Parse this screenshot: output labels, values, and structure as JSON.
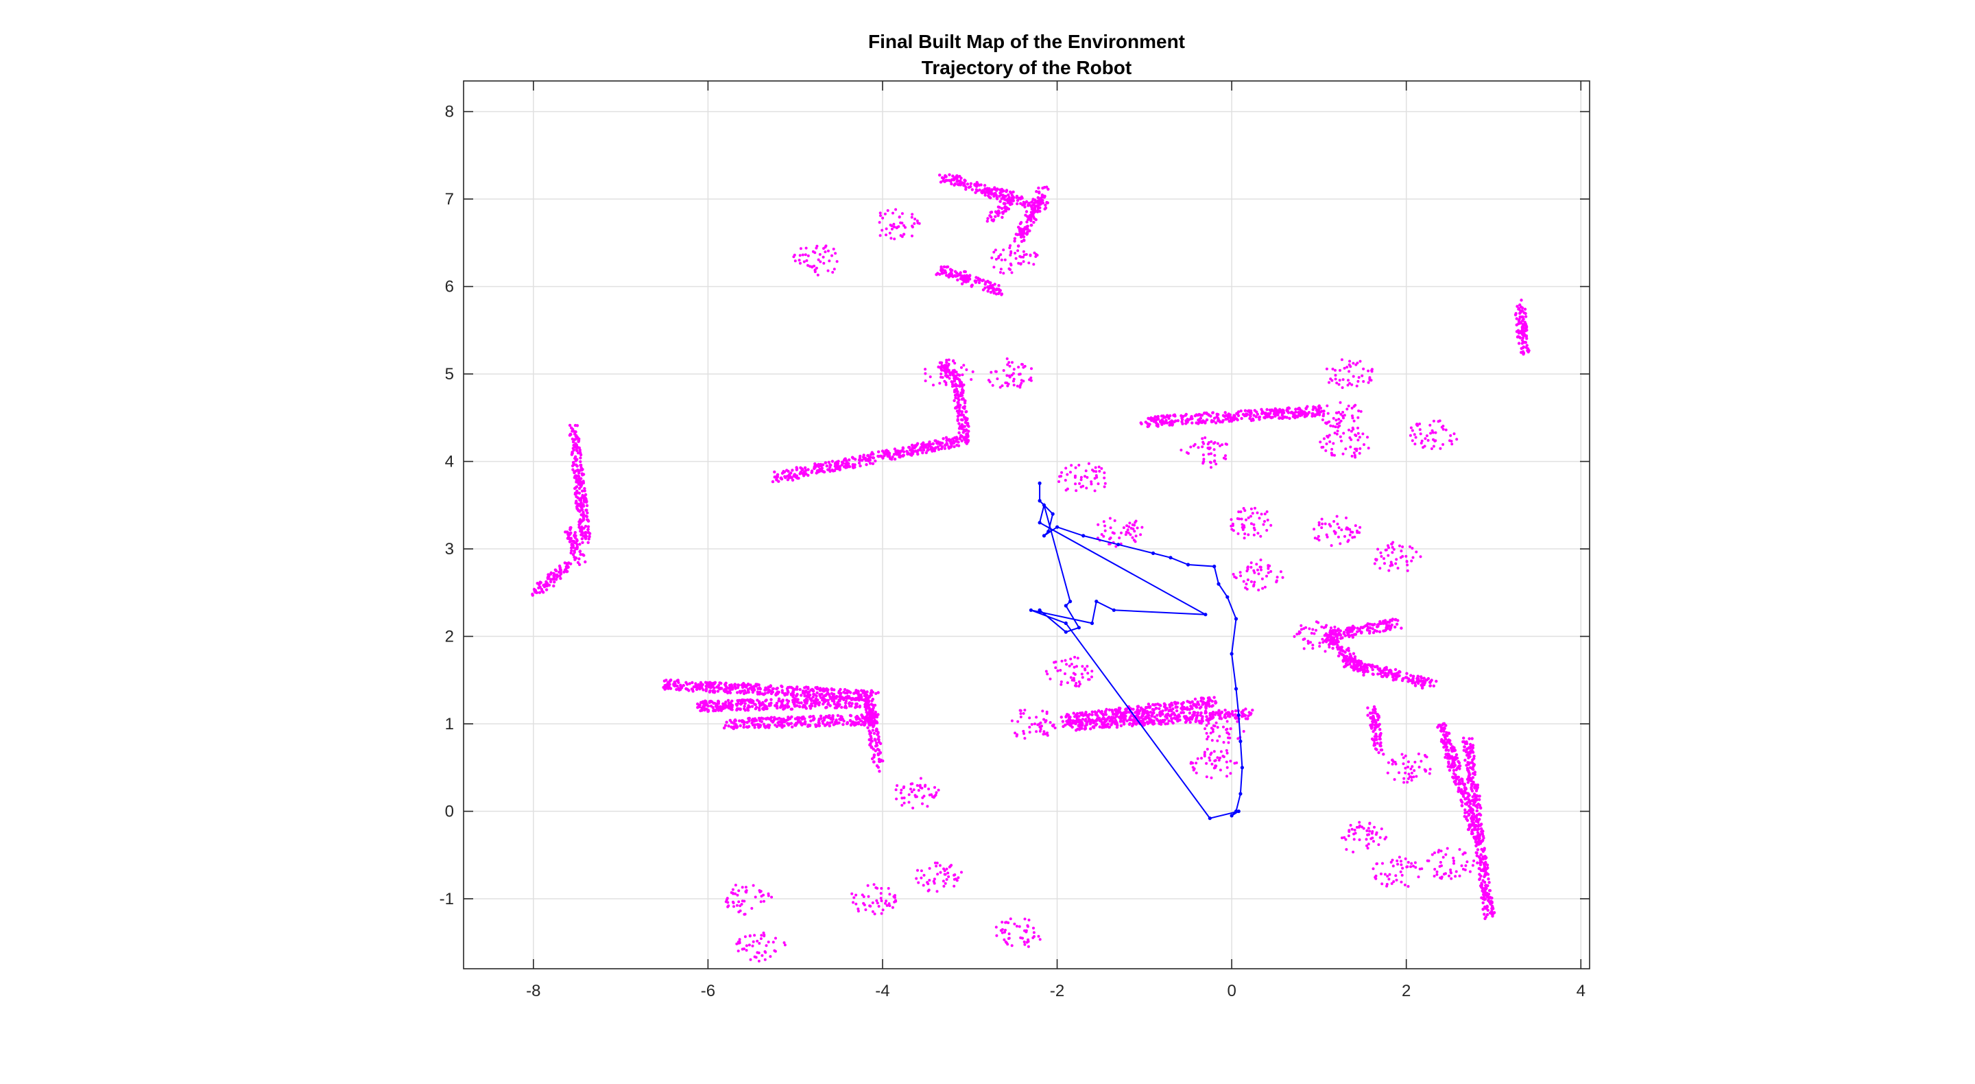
{
  "colors": {
    "map_points": "#ff00ff",
    "trajectory": "#0000ff",
    "grid": "#e0e0e0",
    "axes": "#262626",
    "background": "#ffffff"
  },
  "chart_data": {
    "type": "scatter",
    "title": "Final Built Map of the Environment",
    "subtitle": "Trajectory of the Robot",
    "xlabel": "",
    "ylabel": "",
    "xlim": [
      -8.8,
      4.1
    ],
    "ylim": [
      -1.8,
      8.35
    ],
    "xticks": [
      -8,
      -6,
      -4,
      -2,
      0,
      2,
      4
    ],
    "yticks": [
      -1,
      0,
      1,
      2,
      3,
      4,
      5,
      6,
      7,
      8
    ],
    "xtick_labels": [
      "-8",
      "-6",
      "-4",
      "-2",
      "0",
      "2",
      "4"
    ],
    "ytick_labels": [
      "-1",
      "0",
      "1",
      "2",
      "3",
      "4",
      "5",
      "6",
      "7",
      "8"
    ],
    "grid": true,
    "legend": "none",
    "series": [
      {
        "kind": "map_points",
        "marker": "dot",
        "segments": [
          [
            [
              -5.2,
              3.82
            ],
            [
              -3.05,
              4.25
            ]
          ],
          [
            [
              -3.05,
              4.25
            ],
            [
              -3.15,
              4.95
            ]
          ],
          [
            [
              -3.15,
              4.95
            ],
            [
              -3.35,
              5.1
            ]
          ],
          [
            [
              -1.0,
              4.45
            ],
            [
              1.05,
              4.58
            ]
          ],
          [
            [
              -7.55,
              4.4
            ],
            [
              -7.4,
              3.1
            ]
          ],
          [
            [
              -7.6,
              3.2
            ],
            [
              -7.45,
              2.85
            ]
          ],
          [
            [
              -8.0,
              2.5
            ],
            [
              -7.6,
              2.8
            ]
          ],
          [
            [
              -6.5,
              1.45
            ],
            [
              -4.1,
              1.32
            ]
          ],
          [
            [
              -6.1,
              1.2
            ],
            [
              -4.2,
              1.25
            ]
          ],
          [
            [
              -5.8,
              1.0
            ],
            [
              -4.05,
              1.05
            ]
          ],
          [
            [
              -4.15,
              1.3
            ],
            [
              -4.05,
              0.5
            ]
          ],
          [
            [
              -1.9,
              0.98
            ],
            [
              0.2,
              1.12
            ]
          ],
          [
            [
              -1.9,
              1.05
            ],
            [
              -0.2,
              1.25
            ]
          ],
          [
            [
              1.1,
              2.0
            ],
            [
              1.9,
              2.15
            ]
          ],
          [
            [
              1.1,
              2.0
            ],
            [
              1.5,
              1.6
            ]
          ],
          [
            [
              1.3,
              1.7
            ],
            [
              2.3,
              1.45
            ]
          ],
          [
            [
              1.6,
              1.2
            ],
            [
              1.7,
              0.7
            ]
          ],
          [
            [
              2.4,
              1.0
            ],
            [
              2.8,
              -0.3
            ]
          ],
          [
            [
              2.7,
              0.8
            ],
            [
              2.95,
              -1.2
            ]
          ],
          [
            [
              3.3,
              5.8
            ],
            [
              3.35,
              5.25
            ]
          ],
          [
            [
              -3.3,
              7.25
            ],
            [
              -2.15,
              6.9
            ]
          ],
          [
            [
              -2.15,
              7.1
            ],
            [
              -2.45,
              6.5
            ]
          ],
          [
            [
              -2.55,
              7.0
            ],
            [
              -2.75,
              6.75
            ]
          ],
          [
            [
              -3.35,
              6.2
            ],
            [
              -2.65,
              5.95
            ]
          ]
        ],
        "clusters": [
          [
            -3.25,
            5.0
          ],
          [
            -2.55,
            5.0
          ],
          [
            -4.75,
            6.3
          ],
          [
            -3.85,
            6.7
          ],
          [
            -2.5,
            6.3
          ],
          [
            -1.85,
            1.6
          ],
          [
            -2.3,
            1.0
          ],
          [
            -0.1,
            0.95
          ],
          [
            -0.2,
            0.55
          ],
          [
            -3.6,
            0.2
          ],
          [
            -3.35,
            -0.75
          ],
          [
            -4.1,
            -1.0
          ],
          [
            -2.45,
            -1.4
          ],
          [
            -5.4,
            -1.55
          ],
          [
            -5.55,
            -1.0
          ],
          [
            1.35,
            5.0
          ],
          [
            1.25,
            4.5
          ],
          [
            1.3,
            4.2
          ],
          [
            1.2,
            3.2
          ],
          [
            1.9,
            2.9
          ],
          [
            2.3,
            4.3
          ],
          [
            1.0,
            2.0
          ],
          [
            0.3,
            2.7
          ],
          [
            2.05,
            0.5
          ],
          [
            2.5,
            -0.6
          ],
          [
            1.5,
            -0.3
          ],
          [
            1.9,
            -0.7
          ],
          [
            0.2,
            3.3
          ],
          [
            -1.3,
            3.2
          ],
          [
            -1.7,
            3.8
          ],
          [
            -0.3,
            4.1
          ]
        ]
      },
      {
        "kind": "trajectory",
        "line": true,
        "x": [
          -2.2,
          -2.2,
          -2.05,
          -2.1,
          -2.15,
          -2.0,
          -1.7,
          -1.3,
          -0.9,
          -0.7,
          -0.5,
          -0.2,
          -0.15,
          -0.05,
          0.05,
          0.0,
          0.05,
          0.08,
          0.1,
          0.12,
          0.1,
          0.05,
          0.0,
          0.08,
          -0.25,
          -1.9,
          -2.3,
          -1.6,
          -1.55,
          -1.35,
          -0.3,
          -2.2,
          -2.15,
          -1.85,
          -1.9,
          -1.75,
          -1.9,
          -2.2
        ],
        "y": [
          3.75,
          3.55,
          3.4,
          3.2,
          3.15,
          3.25,
          3.15,
          3.05,
          2.95,
          2.9,
          2.82,
          2.8,
          2.6,
          2.45,
          2.2,
          1.8,
          1.4,
          1.1,
          0.8,
          0.5,
          0.2,
          0.0,
          -0.05,
          0.0,
          -0.08,
          2.15,
          2.3,
          2.15,
          2.4,
          2.3,
          2.25,
          3.3,
          3.5,
          2.4,
          2.35,
          2.1,
          2.05,
          2.3
        ]
      }
    ]
  }
}
